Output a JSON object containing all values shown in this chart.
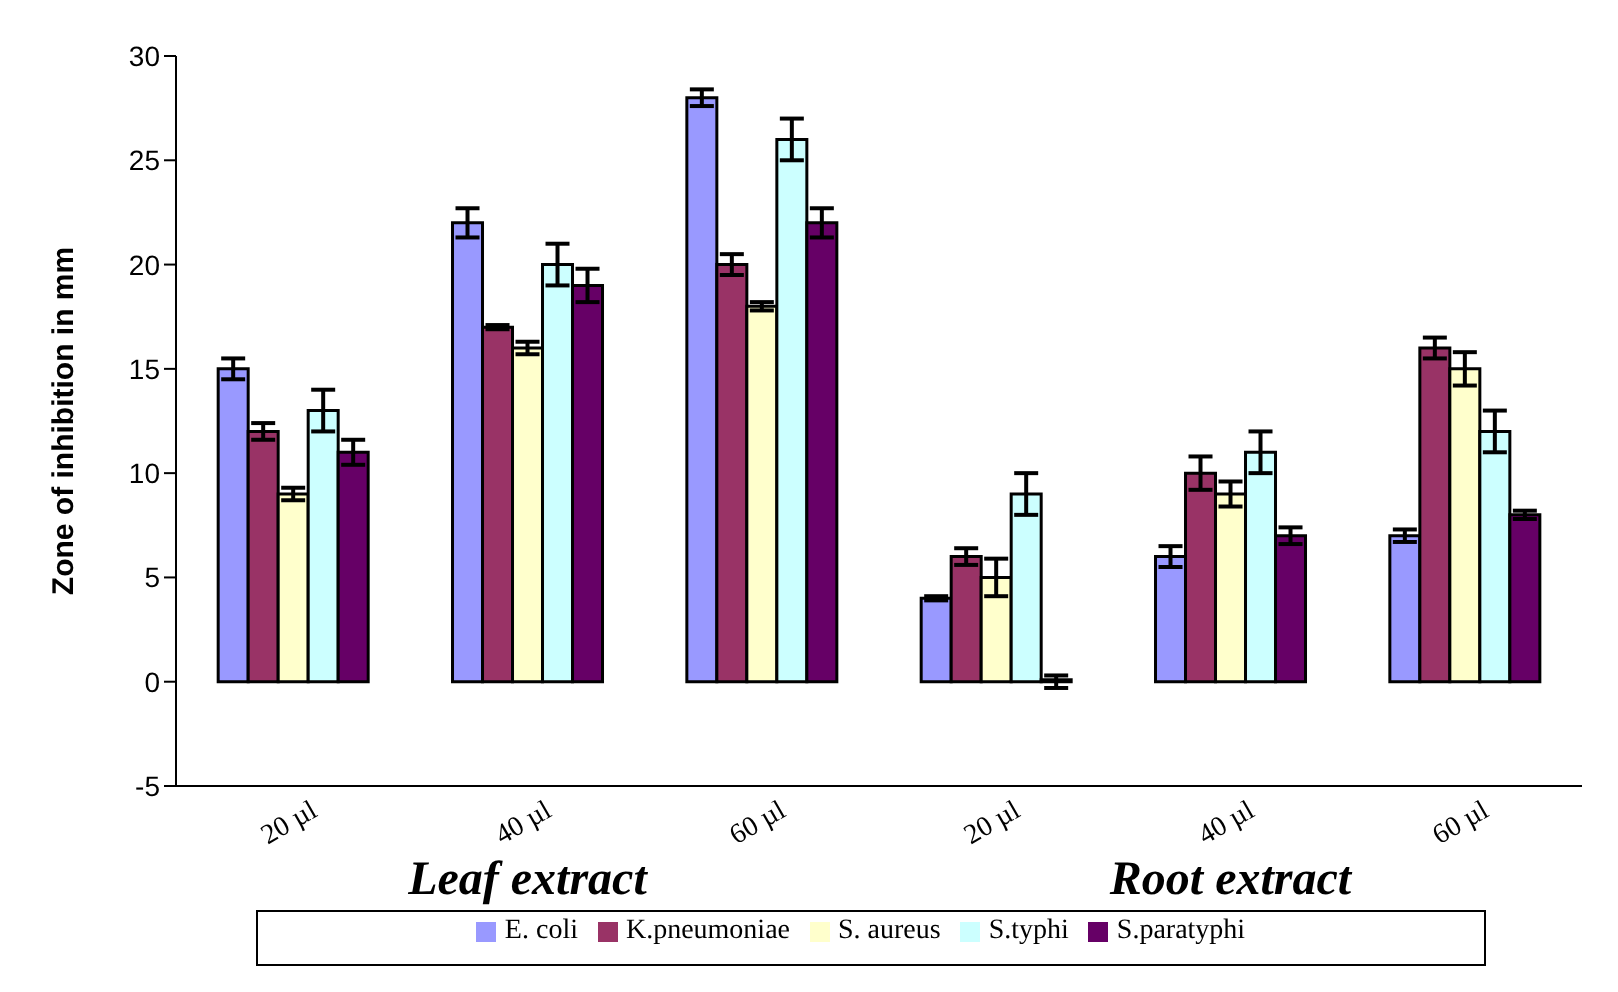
{
  "chart_data": {
    "type": "bar",
    "ylabel": "Zone of inhibition in mm",
    "categories": [
      "20 µl",
      "40 µl",
      "60 µl",
      "20 µl",
      "40 µl",
      "60 µl"
    ],
    "series": [
      {
        "name": "E. coli",
        "color": "#9999ff",
        "values": [
          15,
          22,
          28,
          4,
          6,
          7
        ],
        "errors": [
          0.5,
          0.7,
          0.4,
          0.1,
          0.5,
          0.3
        ]
      },
      {
        "name": "K.pneumoniae",
        "color": "#993366",
        "values": [
          12,
          17,
          20,
          6,
          10,
          16
        ],
        "errors": [
          0.4,
          0.1,
          0.5,
          0.4,
          0.8,
          0.5
        ]
      },
      {
        "name": "S. aureus",
        "color": "#ffffcc",
        "values": [
          9,
          16,
          18,
          5,
          9,
          15
        ],
        "errors": [
          0.3,
          0.3,
          0.2,
          0.9,
          0.6,
          0.8
        ]
      },
      {
        "name": "S.typhi",
        "color": "#ccffff",
        "values": [
          13,
          20,
          26,
          9,
          11,
          12
        ],
        "errors": [
          1,
          1,
          1,
          1,
          1,
          1
        ]
      },
      {
        "name": "S.paratyphi",
        "color": "#660066",
        "values": [
          11,
          19,
          22,
          0,
          7,
          8
        ],
        "errors": [
          0.6,
          0.8,
          0.7,
          0.3,
          0.4,
          0.2
        ]
      }
    ],
    "ylim": [
      -5,
      30
    ],
    "yticks": [
      -5,
      0,
      5,
      10,
      15,
      20,
      25,
      30
    ],
    "legend": "bottom",
    "annotations": [
      "Leaf extract",
      "Root extract"
    ]
  }
}
